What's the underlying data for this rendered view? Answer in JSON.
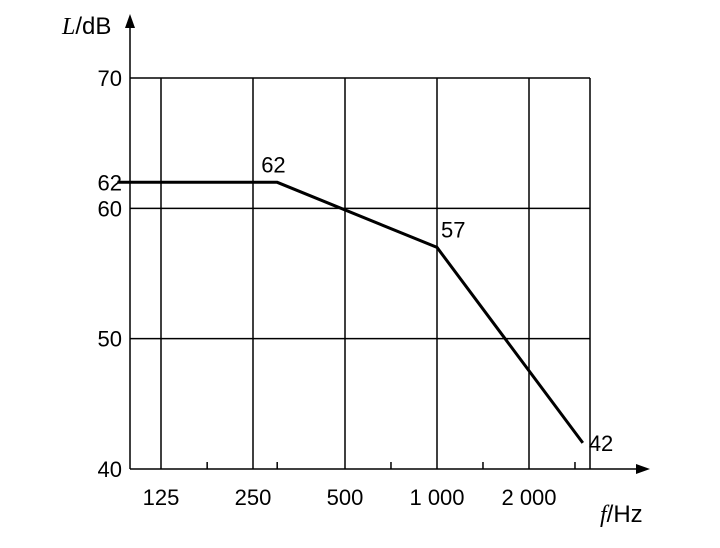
{
  "chart_data": {
    "type": "line",
    "x_scale": "log2",
    "x": [
      90,
      300,
      1000,
      3000
    ],
    "values": [
      62,
      62,
      57,
      42
    ],
    "xticks": [
      {
        "label": "125",
        "value": 125
      },
      {
        "label": "250",
        "value": 250
      },
      {
        "label": "500",
        "value": 500
      },
      {
        "label": "1 000",
        "value": 1000
      },
      {
        "label": "2 000",
        "value": 2000
      }
    ],
    "minor_x_ticks": [
      177,
      300,
      707,
      1414,
      2828
    ],
    "yticks": [
      {
        "label": "40",
        "value": 40
      },
      {
        "label": "50",
        "value": 50
      },
      {
        "label": "60",
        "value": 60
      },
      {
        "label": "62",
        "value": 62
      },
      {
        "label": "70",
        "value": 70
      }
    ],
    "hgrid": [
      50,
      60,
      70
    ],
    "ylim": [
      40,
      70
    ],
    "data_labels": [
      {
        "text": "62",
        "x": 300,
        "y": 62
      },
      {
        "text": "57",
        "x": 1000,
        "y": 57
      },
      {
        "text": "42",
        "x": 3000,
        "y": 42
      }
    ],
    "ylabel": {
      "var": "L",
      "unit": "/dB"
    },
    "xlabel": {
      "var": "f",
      "unit": "/Hz"
    },
    "grid": true,
    "line_color": "#000000"
  }
}
